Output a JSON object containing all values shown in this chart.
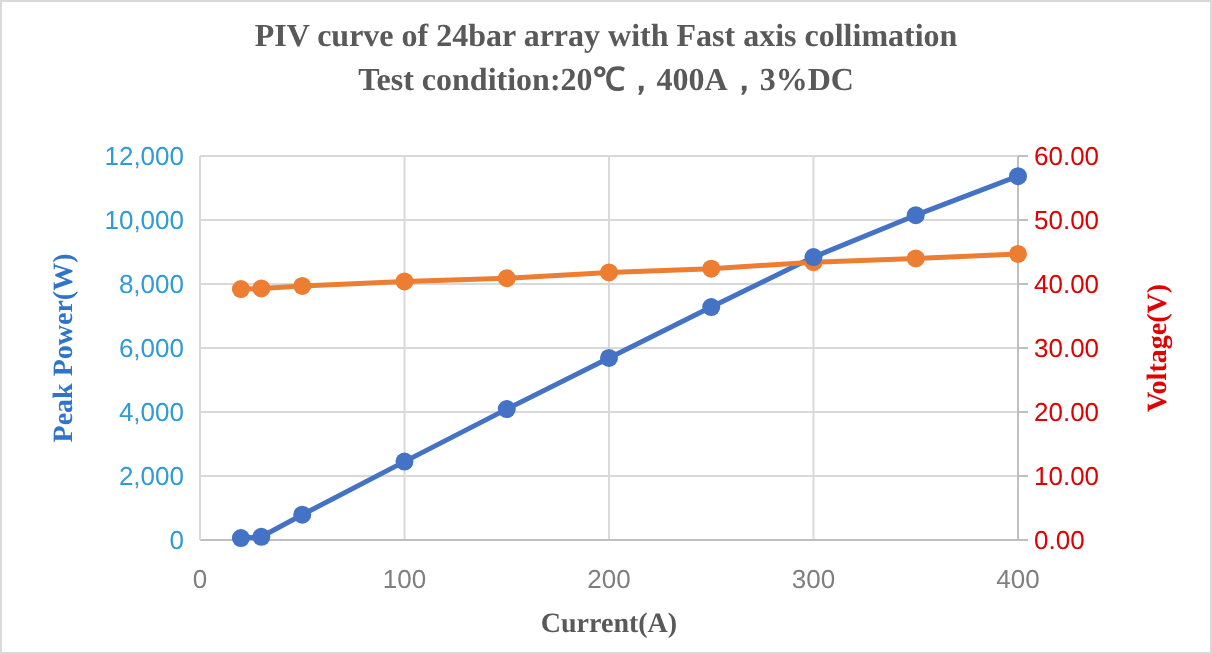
{
  "chart_data": {
    "type": "line",
    "title": "PIV curve of 24bar array with Fast axis collimation",
    "subtitle": "Test condition:20℃，400A，3%DC",
    "xlabel": "Current(A)",
    "ylabel": "Peak Power(W)",
    "y2label": "Voltage(V)",
    "x": [
      20,
      30,
      50,
      100,
      150,
      200,
      250,
      300,
      350,
      400
    ],
    "series": [
      {
        "color": "#4472c4",
        "values": [
          60,
          100,
          790,
          2450,
          4090,
          5690,
          7280,
          8840,
          10150,
          11370
        ]
      },
      {
        "color": "#ed7d31",
        "axis": "y2",
        "values": [
          39.2,
          39.3,
          39.7,
          40.4,
          40.9,
          41.8,
          42.4,
          43.4,
          44.0,
          44.7
        ]
      }
    ],
    "xlim": [
      0,
      400
    ],
    "xticks": [
      0,
      100,
      200,
      300,
      400
    ],
    "ylim": [
      0,
      12000
    ],
    "yticks": [
      0,
      {
        "value": 2000,
        "label": "2,000"
      },
      {
        "value": 4000,
        "label": "4,000"
      },
      {
        "value": 6000,
        "label": "6,000"
      },
      {
        "value": 8000,
        "label": "8,000"
      },
      {
        "value": 10000,
        "label": "10,000"
      },
      {
        "value": 12000,
        "label": "12,000"
      }
    ],
    "y2lim": [
      0,
      60
    ],
    "y2ticks": [
      {
        "value": 0,
        "label": "0.00"
      },
      {
        "value": 10,
        "label": "10.00"
      },
      {
        "value": 20,
        "label": "20.00"
      },
      {
        "value": 30,
        "label": "30.00"
      },
      {
        "value": 40,
        "label": "40.00"
      },
      {
        "value": 50,
        "label": "50.00"
      },
      {
        "value": 60,
        "label": "60.00"
      }
    ],
    "grid": true,
    "marker": "circle",
    "line_style": "solid"
  }
}
